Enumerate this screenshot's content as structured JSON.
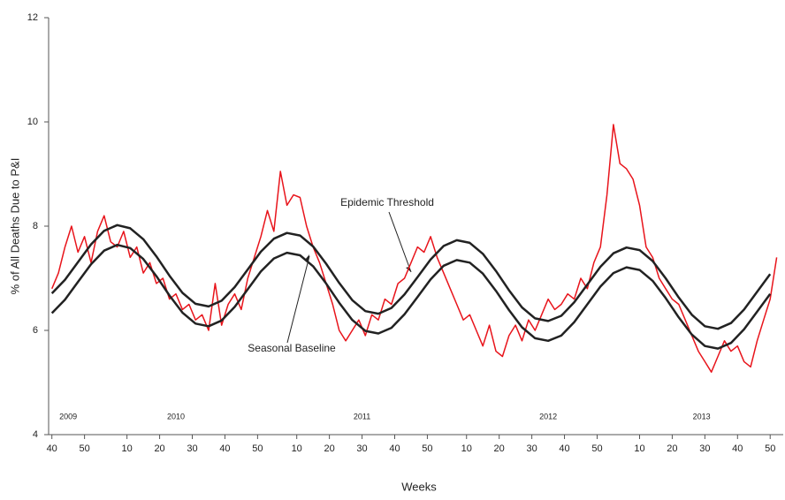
{
  "chart_data": {
    "type": "line",
    "y_label": "% of All Deaths Due to P&I",
    "x_label": "Weeks",
    "xlim": [
      -1,
      224
    ],
    "ylim": [
      4,
      12
    ],
    "yticks": [
      4,
      6,
      8,
      10,
      12
    ],
    "xticks": [
      {
        "value": 0,
        "label": "40"
      },
      {
        "value": 10,
        "label": "50"
      },
      {
        "value": 23,
        "label": "10"
      },
      {
        "value": 33,
        "label": "20"
      },
      {
        "value": 43,
        "label": "30"
      },
      {
        "value": 53,
        "label": "40"
      },
      {
        "value": 63,
        "label": "50"
      },
      {
        "value": 75,
        "label": "10"
      },
      {
        "value": 85,
        "label": "20"
      },
      {
        "value": 95,
        "label": "30"
      },
      {
        "value": 105,
        "label": "40"
      },
      {
        "value": 115,
        "label": "50"
      },
      {
        "value": 127,
        "label": "10"
      },
      {
        "value": 137,
        "label": "20"
      },
      {
        "value": 147,
        "label": "30"
      },
      {
        "value": 157,
        "label": "40"
      },
      {
        "value": 167,
        "label": "50"
      },
      {
        "value": 180,
        "label": "10"
      },
      {
        "value": 190,
        "label": "20"
      },
      {
        "value": 200,
        "label": "30"
      },
      {
        "value": 210,
        "label": "40"
      },
      {
        "value": 220,
        "label": "50"
      }
    ],
    "year_labels": [
      {
        "value": 5,
        "label": "2009"
      },
      {
        "value": 38,
        "label": "2010"
      },
      {
        "value": 95,
        "label": "2011"
      },
      {
        "value": 152,
        "label": "2012"
      },
      {
        "value": 199,
        "label": "2013"
      }
    ],
    "series": [
      {
        "color": "#e8141b",
        "x": [
          0,
          2,
          4,
          6,
          8,
          10,
          12,
          14,
          16,
          18,
          20,
          22,
          24,
          26,
          28,
          30,
          32,
          34,
          36,
          38,
          40,
          42,
          44,
          46,
          48,
          50,
          52,
          54,
          56,
          58,
          60,
          62,
          64,
          66,
          68,
          70,
          72,
          74,
          76,
          78,
          80,
          82,
          84,
          86,
          88,
          90,
          92,
          94,
          96,
          98,
          100,
          102,
          104,
          106,
          108,
          110,
          112,
          114,
          116,
          118,
          120,
          122,
          124,
          126,
          128,
          130,
          132,
          134,
          136,
          138,
          140,
          142,
          144,
          146,
          148,
          150,
          152,
          154,
          156,
          158,
          160,
          162,
          164,
          166,
          168,
          170,
          172,
          174,
          176,
          178,
          180,
          182,
          184,
          186,
          188,
          190,
          192,
          194,
          196,
          198,
          200,
          202,
          204,
          206,
          208,
          210,
          212,
          214,
          216,
          218,
          220,
          222
        ],
        "values": [
          6.8,
          7.1,
          7.6,
          8.0,
          7.5,
          7.8,
          7.3,
          7.9,
          8.2,
          7.7,
          7.6,
          7.9,
          7.4,
          7.6,
          7.1,
          7.3,
          6.9,
          7.0,
          6.6,
          6.7,
          6.4,
          6.5,
          6.2,
          6.3,
          6.0,
          6.9,
          6.1,
          6.5,
          6.7,
          6.4,
          7.0,
          7.4,
          7.8,
          8.3,
          7.9,
          9.05,
          8.4,
          8.6,
          8.55,
          8.0,
          7.6,
          7.3,
          6.9,
          6.5,
          6.0,
          5.8,
          6.0,
          6.2,
          5.9,
          6.3,
          6.2,
          6.6,
          6.5,
          6.9,
          7.0,
          7.3,
          7.6,
          7.5,
          7.8,
          7.4,
          7.1,
          6.8,
          6.5,
          6.2,
          6.3,
          6.0,
          5.7,
          6.1,
          5.6,
          5.5,
          5.9,
          6.1,
          5.8,
          6.2,
          6.0,
          6.3,
          6.6,
          6.4,
          6.5,
          6.7,
          6.6,
          7.0,
          6.8,
          7.3,
          7.6,
          8.6,
          9.95,
          9.2,
          9.1,
          8.9,
          8.4,
          7.6,
          7.4,
          7.0,
          6.8,
          6.6,
          6.5,
          6.2,
          5.9,
          5.6,
          5.4,
          5.2,
          5.5,
          5.8,
          5.6,
          5.7,
          5.4,
          5.3,
          5.8,
          6.2,
          6.6,
          7.4
        ]
      },
      {
        "name": "Epidemic Threshold",
        "color": "#222222",
        "x": [
          0,
          4,
          8,
          12,
          16,
          20,
          24,
          28,
          32,
          36,
          40,
          44,
          48,
          52,
          56,
          60,
          64,
          68,
          72,
          76,
          80,
          84,
          88,
          92,
          96,
          100,
          104,
          108,
          112,
          116,
          120,
          124,
          128,
          132,
          136,
          140,
          144,
          148,
          152,
          156,
          160,
          164,
          168,
          172,
          176,
          180,
          184,
          188,
          192,
          196,
          200,
          204,
          208,
          212,
          216,
          220
        ],
        "values": [
          6.71,
          6.97,
          7.31,
          7.65,
          7.91,
          8.02,
          7.96,
          7.75,
          7.42,
          7.05,
          6.72,
          6.51,
          6.46,
          6.57,
          6.83,
          7.17,
          7.51,
          7.76,
          7.87,
          7.82,
          7.61,
          7.28,
          6.91,
          6.58,
          6.37,
          6.32,
          6.43,
          6.69,
          7.02,
          7.36,
          7.62,
          7.73,
          7.68,
          7.47,
          7.14,
          6.77,
          6.44,
          6.23,
          6.18,
          6.28,
          6.54,
          6.88,
          7.22,
          7.48,
          7.59,
          7.54,
          7.33,
          7.0,
          6.63,
          6.3,
          6.08,
          6.03,
          6.14,
          6.4,
          6.74,
          7.08
        ]
      },
      {
        "name": "Seasonal Baseline",
        "color": "#222222",
        "x": [
          0,
          4,
          8,
          12,
          16,
          20,
          24,
          28,
          32,
          36,
          40,
          44,
          48,
          52,
          56,
          60,
          64,
          68,
          72,
          76,
          80,
          84,
          88,
          92,
          96,
          100,
          104,
          108,
          112,
          116,
          120,
          124,
          128,
          132,
          136,
          140,
          144,
          148,
          152,
          156,
          160,
          164,
          168,
          172,
          176,
          180,
          184,
          188,
          192,
          196,
          200,
          204,
          208,
          212,
          216,
          220
        ],
        "values": [
          6.33,
          6.59,
          6.93,
          7.27,
          7.53,
          7.64,
          7.58,
          7.37,
          7.04,
          6.67,
          6.34,
          6.13,
          6.08,
          6.19,
          6.45,
          6.79,
          7.13,
          7.38,
          7.49,
          7.44,
          7.23,
          6.9,
          6.53,
          6.2,
          5.99,
          5.94,
          6.05,
          6.31,
          6.64,
          6.98,
          7.24,
          7.35,
          7.3,
          7.09,
          6.76,
          6.39,
          6.06,
          5.85,
          5.8,
          5.9,
          6.16,
          6.5,
          6.84,
          7.1,
          7.21,
          7.16,
          6.95,
          6.62,
          6.25,
          5.92,
          5.7,
          5.65,
          5.76,
          6.02,
          6.36,
          6.7
        ]
      }
    ]
  }
}
